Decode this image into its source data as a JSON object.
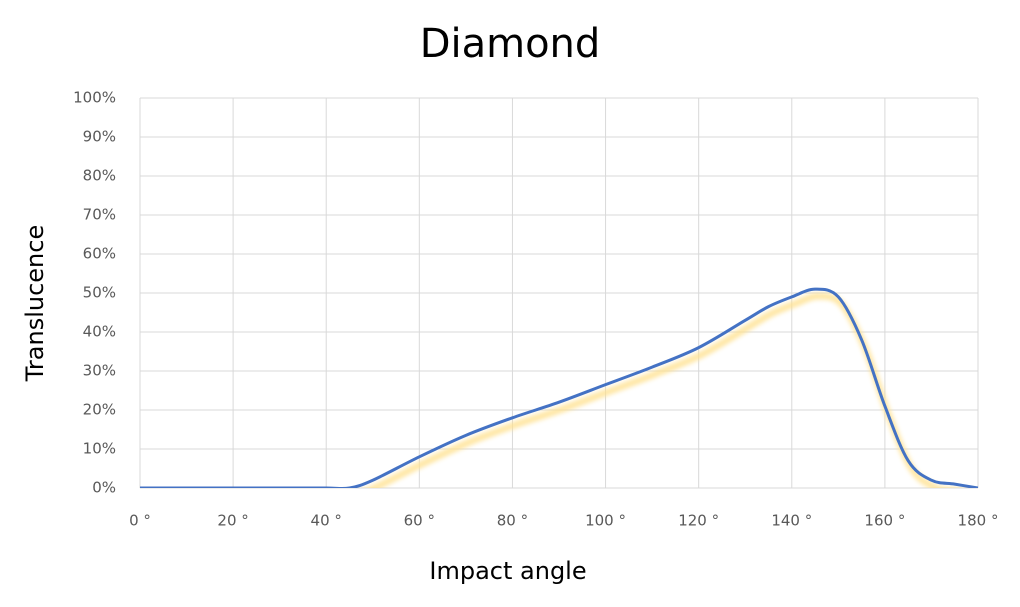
{
  "chart_data": {
    "type": "line",
    "title": "Diamond",
    "x_label": "Impact angle",
    "y_label": "Translucence",
    "x": [
      0,
      10,
      20,
      30,
      40,
      45,
      50,
      60,
      70,
      80,
      90,
      100,
      110,
      120,
      130,
      135,
      140,
      145,
      150,
      155,
      160,
      165,
      170,
      175,
      180
    ],
    "series": [
      {
        "color": "#4472c4",
        "glow_color": "#ffe08a",
        "values": [
          0,
          0,
          0,
          0,
          0,
          0,
          2,
          8,
          13.5,
          18,
          22,
          26.5,
          31,
          36,
          43,
          46.5,
          49,
          51,
          49,
          38,
          21,
          7,
          2,
          1,
          0
        ]
      }
    ],
    "xlim": [
      0,
      180
    ],
    "xticks": [
      {
        "value": 0,
        "label": "0 °"
      },
      {
        "value": 20,
        "label": "20 °"
      },
      {
        "value": 40,
        "label": "40 °"
      },
      {
        "value": 60,
        "label": "60 °"
      },
      {
        "value": 80,
        "label": "80 °"
      },
      {
        "value": 100,
        "label": "100 °"
      },
      {
        "value": 120,
        "label": "120 °"
      },
      {
        "value": 140,
        "label": "140 °"
      },
      {
        "value": 160,
        "label": "160 °"
      },
      {
        "value": 180,
        "label": "180 °"
      }
    ],
    "ylim": [
      0,
      100
    ],
    "yticks": [
      {
        "value": 0,
        "label": "0%"
      },
      {
        "value": 10,
        "label": "10%"
      },
      {
        "value": 20,
        "label": "20%"
      },
      {
        "value": 30,
        "label": "30%"
      },
      {
        "value": 40,
        "label": "40%"
      },
      {
        "value": 50,
        "label": "50%"
      },
      {
        "value": 60,
        "label": "60%"
      },
      {
        "value": 70,
        "label": "70%"
      },
      {
        "value": 80,
        "label": "80%"
      },
      {
        "value": 90,
        "label": "90%"
      },
      {
        "value": 100,
        "label": "100%"
      }
    ],
    "grid": true
  }
}
